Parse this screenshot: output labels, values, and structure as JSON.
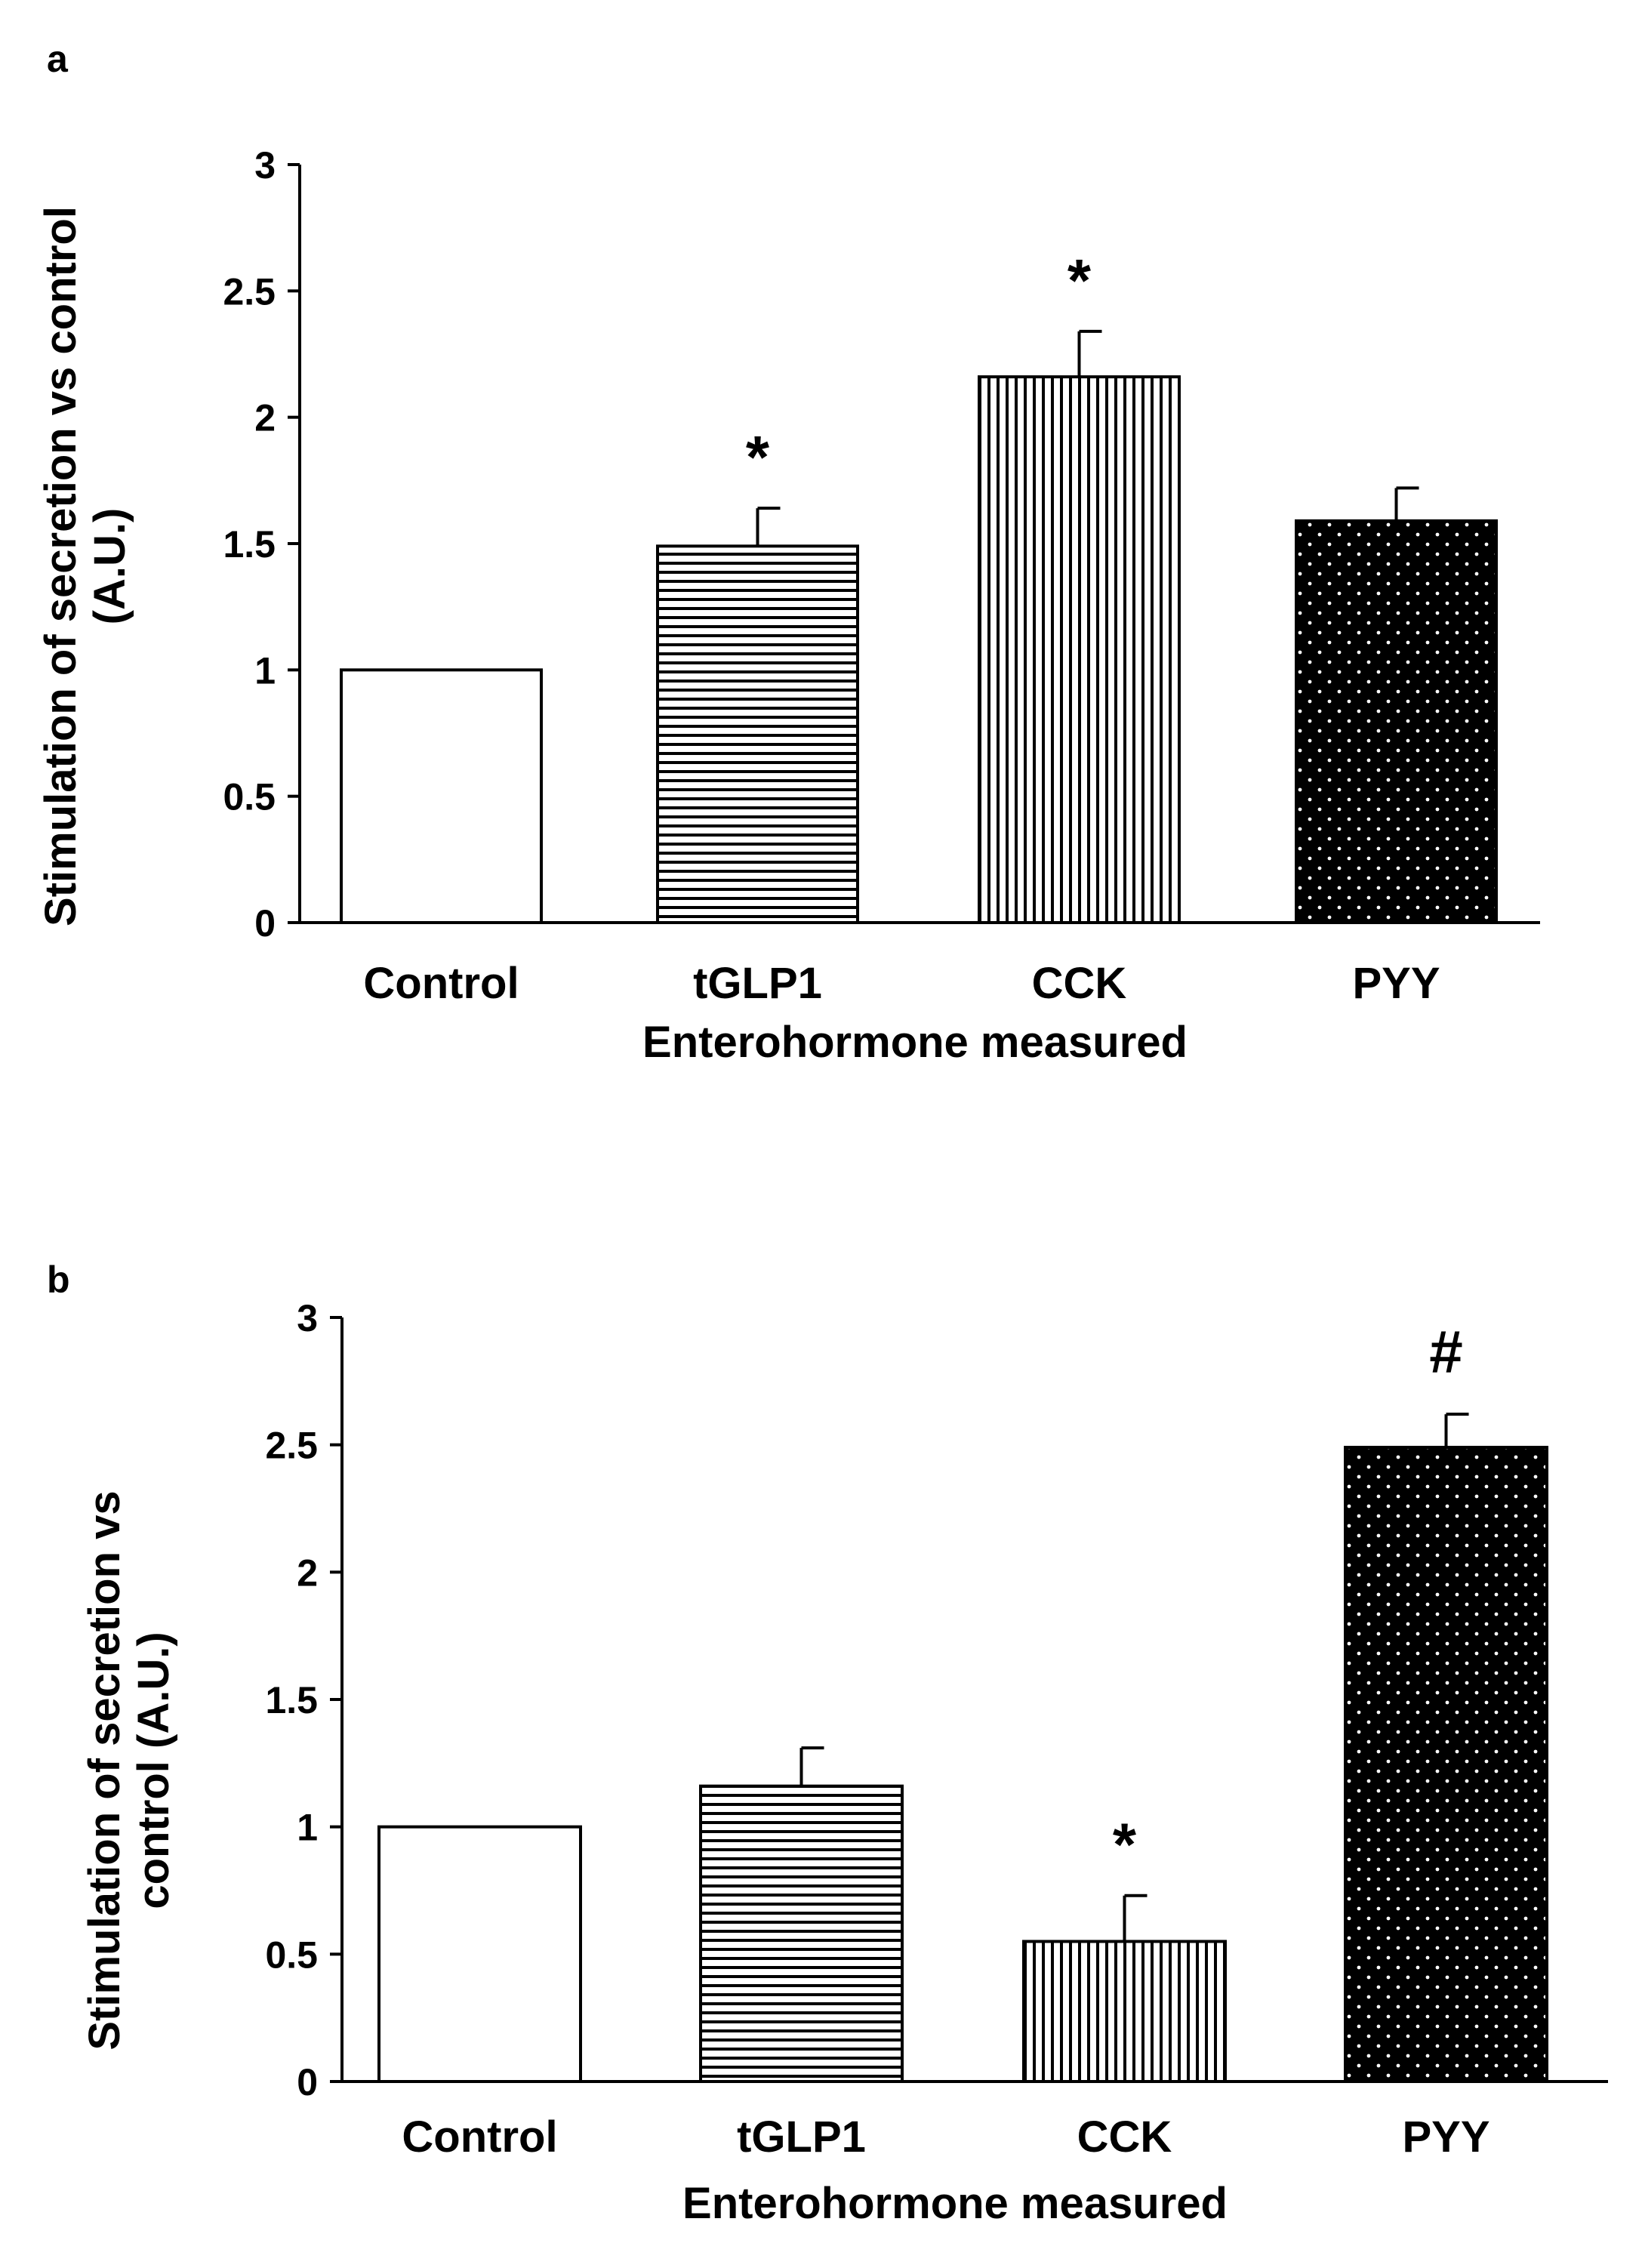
{
  "chart_data": [
    {
      "type": "bar",
      "panel": "a",
      "categories": [
        "Control",
        "tGLP1",
        "CCK",
        "PYY"
      ],
      "values": [
        1.0,
        1.49,
        2.16,
        1.59
      ],
      "errors": [
        0,
        0.15,
        0.18,
        0.13
      ],
      "significance": [
        "",
        "*",
        "*",
        ""
      ],
      "fills": [
        "white",
        "horizontal-lines",
        "vertical-lines",
        "dots-on-black"
      ],
      "title": "",
      "xlabel": "Enterohormone measured",
      "ylabel": [
        "Stimulation of secretion vs control",
        "(A.U.)"
      ],
      "ylim": [
        0,
        3
      ],
      "yticks": [
        "0",
        "0.5",
        "1",
        "1.5",
        "2",
        "2.5",
        "3"
      ],
      "grid": false,
      "legend": "none"
    },
    {
      "type": "bar",
      "panel": "b",
      "categories": [
        "Control",
        "tGLP1",
        "CCK",
        "PYY"
      ],
      "values": [
        1.0,
        1.16,
        0.55,
        2.49
      ],
      "errors": [
        0,
        0.15,
        0.18,
        0.13
      ],
      "significance": [
        "",
        "",
        "*",
        "#"
      ],
      "fills": [
        "white",
        "horizontal-lines",
        "vertical-lines",
        "dots-on-black"
      ],
      "title": "",
      "xlabel": "Enterohormone measured",
      "ylabel": [
        "Stimulation of secretion vs",
        "control (A.U.)"
      ],
      "ylim": [
        0,
        3
      ],
      "yticks": [
        "0",
        "0.5",
        "1",
        "1.5",
        "2",
        "2.5",
        "3"
      ],
      "grid": false,
      "legend": "none"
    }
  ],
  "colors": {
    "ink": "#000000",
    "paper": "#ffffff"
  }
}
